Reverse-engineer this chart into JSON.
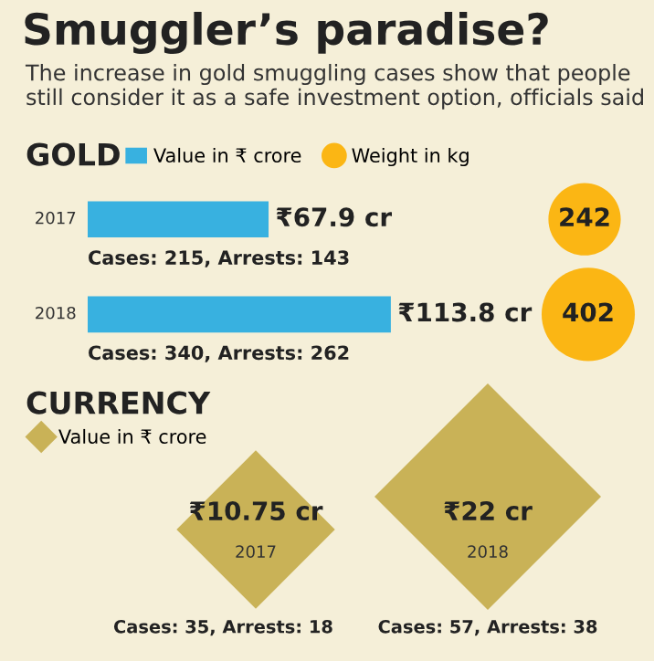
{
  "chart_data": [
    {
      "type": "bar",
      "orientation": "horizontal",
      "title": "Smuggler’s paradise?",
      "subtitle": "The increase in gold smuggling cases show that people still consider it as a safe investment option, officials said",
      "legend_title": "GOLD",
      "legend": "top",
      "categories": [
        "2017",
        "2018"
      ],
      "series": [
        {
          "name": "Value in ₹ crore",
          "color": "#38b1e0",
          "values": [
            67.9,
            113.8
          ],
          "value_labels": [
            "₹67.9 cr",
            "₹113.8 cr"
          ]
        }
      ],
      "annotations": [
        "Cases: 215, Arrests: 143",
        "Cases: 340, Arrests: 262"
      ]
    },
    {
      "type": "other",
      "categories": [
        null,
        null
      ],
      "series": [
        {
          "name": "Weight in kg",
          "color": "#fbb614",
          "values": [
            242,
            402
          ]
        }
      ],
      "data_labels": true
    },
    {
      "type": "other",
      "title": "CURRENCY",
      "legend": "top left",
      "categories": [
        "2017",
        "2018"
      ],
      "series": [
        {
          "name": "Value in ₹ crore",
          "color": "#c9b257",
          "values": [
            10.75,
            22
          ],
          "value_labels": [
            "₹10.75 cr",
            "₹22 cr"
          ]
        }
      ],
      "annotations": [
        "Cases: 35, Arrests: 18",
        "Cases: 57, Arrests: 38"
      ]
    }
  ]
}
